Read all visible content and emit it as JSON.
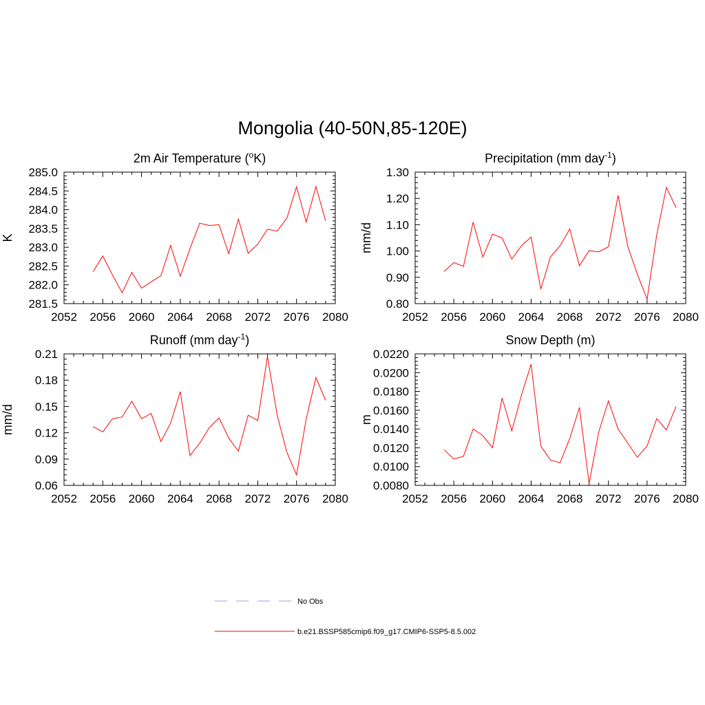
{
  "figure_title": "Mongolia (40-50N,85-120E)",
  "legend": {
    "entries": [
      {
        "label": "No Obs",
        "color": "#9999ff",
        "dash": true
      },
      {
        "label": "b.e21.BSSP585cmip6.f09_g17.CMIP6-SSP5-8.5.002",
        "color": "#ff0000",
        "dash": false
      }
    ]
  },
  "chart_data": [
    {
      "type": "line",
      "title": "2m Air Temperature (",
      "title_sup": "o",
      "title_tail": "K)",
      "ylabel": "K",
      "xlim": [
        2052,
        2080
      ],
      "xticks": [
        2052,
        2056,
        2060,
        2064,
        2068,
        2072,
        2076,
        2080
      ],
      "ylim": [
        281.5,
        285.0
      ],
      "yticks": [
        "285.0",
        "284.5",
        "284.0",
        "283.5",
        "283.0",
        "282.5",
        "282.0",
        "281.5"
      ],
      "series": [
        {
          "color": "#ff0000",
          "x": [
            2055,
            2056,
            2057,
            2058,
            2059,
            2060,
            2061,
            2062,
            2063,
            2064,
            2065,
            2066,
            2067,
            2068,
            2069,
            2070,
            2071,
            2072,
            2073,
            2074,
            2075,
            2076,
            2077,
            2078,
            2079
          ],
          "y": [
            282.35,
            282.77,
            282.26,
            281.79,
            282.33,
            281.91,
            282.08,
            282.24,
            283.05,
            282.23,
            282.96,
            283.64,
            283.58,
            283.6,
            282.83,
            283.75,
            282.84,
            283.08,
            283.48,
            283.43,
            283.77,
            284.61,
            283.67,
            284.62,
            283.7
          ]
        }
      ]
    },
    {
      "type": "line",
      "title": "Precipitation (mm day",
      "title_sup": "-1",
      "title_tail": ")",
      "ylabel": "mm/d",
      "xlim": [
        2052,
        2080
      ],
      "xticks": [
        2052,
        2056,
        2060,
        2064,
        2068,
        2072,
        2076,
        2080
      ],
      "ylim": [
        0.8,
        1.3
      ],
      "yticks": [
        "1.30",
        "1.20",
        "1.10",
        "1.00",
        "0.90",
        "0.80"
      ],
      "series": [
        {
          "color": "#ff0000",
          "x": [
            2055,
            2056,
            2057,
            2058,
            2059,
            2060,
            2061,
            2062,
            2063,
            2064,
            2065,
            2066,
            2067,
            2068,
            2069,
            2070,
            2071,
            2072,
            2073,
            2074,
            2075,
            2076,
            2077,
            2078,
            2079
          ],
          "y": [
            0.922,
            0.956,
            0.942,
            1.11,
            0.977,
            1.064,
            1.05,
            0.969,
            1.02,
            1.053,
            0.855,
            0.977,
            1.02,
            1.084,
            0.944,
            1.001,
            0.997,
            1.016,
            1.211,
            1.018,
            0.911,
            0.817,
            1.061,
            1.242,
            1.165
          ]
        }
      ]
    },
    {
      "type": "line",
      "title": "Runoff (mm day",
      "title_sup": "-1",
      "title_tail": ")",
      "ylabel": "mm/d",
      "xlim": [
        2052,
        2080
      ],
      "xticks": [
        2052,
        2056,
        2060,
        2064,
        2068,
        2072,
        2076,
        2080
      ],
      "ylim": [
        0.06,
        0.21
      ],
      "yticks": [
        "0.21",
        "0.18",
        "0.15",
        "0.12",
        "0.09",
        "0.06"
      ],
      "series": [
        {
          "color": "#ff0000",
          "x": [
            2055,
            2056,
            2057,
            2058,
            2059,
            2060,
            2061,
            2062,
            2063,
            2064,
            2065,
            2066,
            2067,
            2068,
            2069,
            2070,
            2071,
            2072,
            2073,
            2074,
            2075,
            2076,
            2077,
            2078,
            2079
          ],
          "y": [
            0.127,
            0.121,
            0.136,
            0.138,
            0.156,
            0.136,
            0.142,
            0.11,
            0.131,
            0.167,
            0.094,
            0.108,
            0.126,
            0.137,
            0.114,
            0.099,
            0.14,
            0.134,
            0.207,
            0.14,
            0.098,
            0.072,
            0.136,
            0.183,
            0.157
          ]
        }
      ]
    },
    {
      "type": "line",
      "title": "Snow Depth (m)",
      "title_sup": "",
      "title_tail": "",
      "ylabel": "m",
      "xlim": [
        2052,
        2080
      ],
      "xticks": [
        2052,
        2056,
        2060,
        2064,
        2068,
        2072,
        2076,
        2080
      ],
      "ylim": [
        0.008,
        0.022
      ],
      "yticks": [
        "0.0220",
        "0.0200",
        "0.0180",
        "0.0160",
        "0.0140",
        "0.0120",
        "0.0100",
        "0.0080"
      ],
      "series": [
        {
          "color": "#ff0000",
          "x": [
            2055,
            2056,
            2057,
            2058,
            2059,
            2060,
            2061,
            2062,
            2063,
            2064,
            2065,
            2066,
            2067,
            2068,
            2069,
            2070,
            2071,
            2072,
            2073,
            2074,
            2075,
            2076,
            2077,
            2078,
            2079
          ],
          "y": [
            0.0118,
            0.0108,
            0.0111,
            0.014,
            0.0133,
            0.012,
            0.0173,
            0.0138,
            0.0176,
            0.0209,
            0.0122,
            0.0107,
            0.0104,
            0.013,
            0.0163,
            0.0082,
            0.0137,
            0.017,
            0.014,
            0.0125,
            0.011,
            0.0122,
            0.0151,
            0.0139,
            0.0164
          ]
        }
      ]
    }
  ]
}
